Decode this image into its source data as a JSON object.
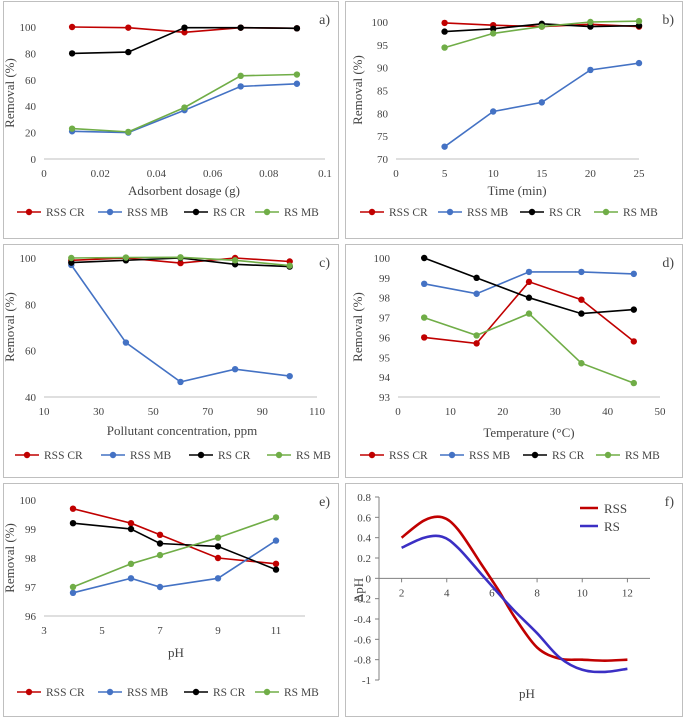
{
  "colors": {
    "rss_cr": "#c00000",
    "rss_mb": "#4472c4",
    "rs_cr": "#000000",
    "rs_mb": "#70ad47",
    "rss_f": "#c00000",
    "rs_f": "#3b2fc4"
  },
  "chart_data": [
    {
      "type": "line",
      "panel_label": "a)",
      "xlabel": "Adsorbent dosage (g)",
      "ylabel": "Removal (%)",
      "xlim": [
        0,
        0.1
      ],
      "ylim": [
        0,
        100
      ],
      "xticks": [
        0,
        0.02,
        0.04,
        0.06,
        0.08,
        0.1
      ],
      "xtick_labels": [
        "0",
        "0.02",
        "0.04",
        "0.06",
        "0.08",
        "0.1"
      ],
      "yticks": [
        0,
        20,
        40,
        60,
        80,
        100
      ],
      "ytick_labels": [
        "0",
        "20",
        "40",
        "60",
        "80",
        "100"
      ],
      "series": [
        {
          "name": "RSS CR",
          "color_key": "rss_cr",
          "x": [
            0.01,
            0.03,
            0.05,
            0.07,
            0.09
          ],
          "y": [
            100,
            99.5,
            96,
            99.5,
            99
          ]
        },
        {
          "name": "RSS MB",
          "color_key": "rss_mb",
          "x": [
            0.01,
            0.03,
            0.05,
            0.07,
            0.09
          ],
          "y": [
            21,
            20,
            37,
            55,
            57
          ]
        },
        {
          "name": "RS CR",
          "color_key": "rs_cr",
          "x": [
            0.01,
            0.03,
            0.05,
            0.07,
            0.09
          ],
          "y": [
            80,
            81,
            99.5,
            99.5,
            99
          ]
        },
        {
          "name": "RS MB",
          "color_key": "rs_mb",
          "x": [
            0.01,
            0.03,
            0.05,
            0.07,
            0.09
          ],
          "y": [
            23,
            20.5,
            39,
            63,
            64
          ]
        }
      ]
    },
    {
      "type": "line",
      "panel_label": "b)",
      "xlabel": "Time (min)",
      "ylabel": "Removal (%)",
      "xlim": [
        0,
        25
      ],
      "ylim": [
        70,
        100
      ],
      "xticks": [
        0,
        5,
        10,
        15,
        20,
        25
      ],
      "xtick_labels": [
        "0",
        "5",
        "10",
        "15",
        "20",
        "25"
      ],
      "yticks": [
        70,
        75,
        80,
        85,
        90,
        95,
        100
      ],
      "ytick_labels": [
        "70",
        "75",
        "80",
        "85",
        "90",
        "95",
        "100"
      ],
      "series": [
        {
          "name": "RSS CR",
          "color_key": "rss_cr",
          "x": [
            5,
            10,
            15,
            20,
            25
          ],
          "y": [
            99.8,
            99.3,
            99,
            99.5,
            99
          ]
        },
        {
          "name": "RSS MB",
          "color_key": "rss_mb",
          "x": [
            5,
            10,
            15,
            20,
            25
          ],
          "y": [
            72.7,
            80.4,
            82.4,
            89.5,
            91
          ]
        },
        {
          "name": "RS CR",
          "color_key": "rs_cr",
          "x": [
            5,
            10,
            15,
            20,
            25
          ],
          "y": [
            97.9,
            98.5,
            99.6,
            99,
            99.2
          ]
        },
        {
          "name": "RS MB",
          "color_key": "rs_mb",
          "x": [
            5,
            10,
            15,
            20,
            25
          ],
          "y": [
            94.4,
            97.5,
            99,
            100,
            100.2
          ]
        }
      ]
    },
    {
      "type": "line",
      "panel_label": "c)",
      "xlabel": "Pollutant concentration, ppm",
      "ylabel": "Removal (%)",
      "xlim": [
        10,
        110
      ],
      "ylim": [
        40,
        100
      ],
      "xticks": [
        10,
        30,
        50,
        70,
        90,
        110
      ],
      "xtick_labels": [
        "10",
        "30",
        "50",
        "70",
        "90",
        "110"
      ],
      "yticks": [
        40,
        60,
        80,
        100
      ],
      "ytick_labels": [
        "40",
        "60",
        "80",
        "100"
      ],
      "series": [
        {
          "name": "RSS CR",
          "color_key": "rss_cr",
          "x": [
            20,
            40,
            60,
            80,
            100
          ],
          "y": [
            99,
            100,
            97.8,
            100,
            98.5
          ]
        },
        {
          "name": "RSS MB",
          "color_key": "rss_mb",
          "x": [
            20,
            40,
            60,
            80,
            100
          ],
          "y": [
            97,
            63.5,
            46.5,
            52,
            49
          ]
        },
        {
          "name": "RS CR",
          "color_key": "rs_cr",
          "x": [
            20,
            40,
            60,
            80,
            100
          ],
          "y": [
            98,
            99,
            100,
            97.3,
            96.3
          ]
        },
        {
          "name": "RS MB",
          "color_key": "rs_mb",
          "x": [
            20,
            40,
            60,
            80,
            100
          ],
          "y": [
            100,
            100.2,
            100.3,
            99,
            96.7
          ]
        }
      ]
    },
    {
      "type": "line",
      "panel_label": "d)",
      "xlabel": "Temperature (°C)",
      "ylabel": "Removal (%)",
      "xlim": [
        0,
        50
      ],
      "ylim": [
        93,
        100
      ],
      "xticks": [
        0,
        10,
        20,
        30,
        40,
        50
      ],
      "xtick_labels": [
        "0",
        "10",
        "20",
        "30",
        "40",
        "50"
      ],
      "yticks": [
        93,
        94,
        95,
        96,
        97,
        98,
        99,
        100
      ],
      "ytick_labels": [
        "93",
        "94",
        "95",
        "96",
        "97",
        "98",
        "99",
        "100"
      ],
      "series": [
        {
          "name": "RSS CR",
          "color_key": "rss_cr",
          "x": [
            5,
            15,
            25,
            35,
            45
          ],
          "y": [
            96,
            95.7,
            98.8,
            97.9,
            95.8
          ]
        },
        {
          "name": "RSS MB",
          "color_key": "rss_mb",
          "x": [
            5,
            15,
            25,
            35,
            45
          ],
          "y": [
            98.7,
            98.2,
            99.3,
            99.3,
            99.2
          ]
        },
        {
          "name": "RS CR",
          "color_key": "rs_cr",
          "x": [
            5,
            15,
            25,
            35,
            45
          ],
          "y": [
            100,
            99,
            98,
            97.2,
            97.4
          ]
        },
        {
          "name": "RS MB",
          "color_key": "rs_mb",
          "x": [
            5,
            15,
            25,
            35,
            45
          ],
          "y": [
            97,
            96.1,
            97.2,
            94.7,
            93.7
          ]
        }
      ]
    },
    {
      "type": "line",
      "panel_label": "e)",
      "xlabel": "pH",
      "ylabel": "Removal (%)",
      "xlim": [
        3,
        12
      ],
      "ylim": [
        96,
        100
      ],
      "xticks": [
        3,
        5,
        7,
        9,
        11
      ],
      "xtick_labels": [
        "3",
        "5",
        "7",
        "9",
        "11"
      ],
      "yticks": [
        96,
        97,
        98,
        99,
        100
      ],
      "ytick_labels": [
        "96",
        "97",
        "98",
        "99",
        "100"
      ],
      "series": [
        {
          "name": "RSS CR",
          "color_key": "rss_cr",
          "x": [
            4,
            6,
            7,
            9,
            11
          ],
          "y": [
            99.7,
            99.2,
            98.8,
            98,
            97.8
          ]
        },
        {
          "name": "RSS MB",
          "color_key": "rss_mb",
          "x": [
            4,
            6,
            7,
            9,
            11
          ],
          "y": [
            96.8,
            97.3,
            97,
            97.3,
            98.6
          ]
        },
        {
          "name": "RS CR",
          "color_key": "rs_cr",
          "x": [
            4,
            6,
            7,
            9,
            11
          ],
          "y": [
            99.2,
            99,
            98.5,
            98.4,
            97.6
          ]
        },
        {
          "name": "RS MB",
          "color_key": "rs_mb",
          "x": [
            4,
            6,
            7,
            9,
            11
          ],
          "y": [
            97,
            97.8,
            98.1,
            98.7,
            99.4
          ]
        }
      ]
    },
    {
      "type": "line",
      "panel_label": "f)",
      "xlabel": "pH",
      "ylabel": "ΔpH",
      "xlim": [
        1,
        13
      ],
      "ylim": [
        -1,
        0.8
      ],
      "xticks": [
        2,
        4,
        6,
        8,
        10,
        12
      ],
      "xtick_labels": [
        "2",
        "4",
        "6",
        "8",
        "10",
        "12"
      ],
      "yticks": [
        -1,
        -0.8,
        -0.6,
        -0.4,
        -0.2,
        0,
        0.2,
        0.4,
        0.6,
        0.8
      ],
      "ytick_labels": [
        "-1",
        "-0.8",
        "-0.6",
        "-0.4",
        "-0.2",
        "0",
        "0.2",
        "0.4",
        "0.6",
        "0.8"
      ],
      "series": [
        {
          "name": "RSS",
          "color_key": "rss_f",
          "x": [
            2,
            3,
            3.8,
            4.5,
            5.5,
            6.3,
            7,
            8,
            9,
            10,
            11,
            12
          ],
          "y": [
            0.4,
            0.57,
            0.6,
            0.48,
            0.15,
            -0.12,
            -0.38,
            -0.68,
            -0.79,
            -0.8,
            -0.81,
            -0.8
          ]
        },
        {
          "name": "RS",
          "color_key": "rs_f",
          "x": [
            2,
            3,
            3.8,
            4.5,
            5.5,
            6.3,
            7,
            8,
            9,
            10,
            11,
            12
          ],
          "y": [
            0.3,
            0.4,
            0.41,
            0.3,
            0.05,
            -0.15,
            -0.32,
            -0.54,
            -0.78,
            -0.9,
            -0.92,
            -0.89
          ]
        }
      ]
    }
  ]
}
